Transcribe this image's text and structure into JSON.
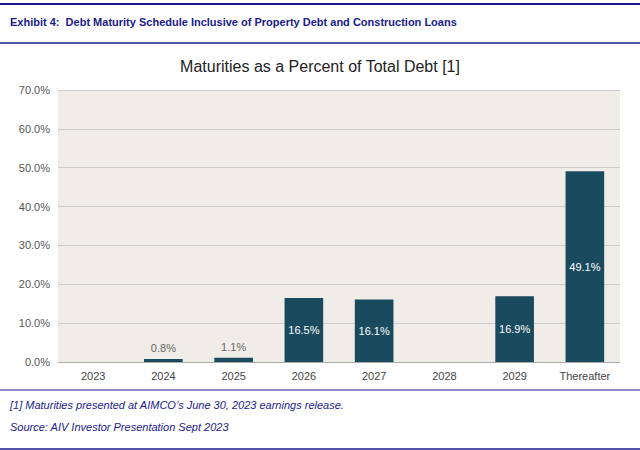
{
  "chart_data": {
    "type": "bar",
    "title": "Maturities as a Percent of Total Debt [1]",
    "annotations": [
      "Exhibit 4:  Debt Maturity Schedule Inclusive of Property Debt and Construction Loans",
      "[1] Maturities presented at AIMCO’s June 30, 2023 earnings release.",
      "Source: AIV Investor Presentation Sept 2023"
    ],
    "categories": [
      "2023",
      "2024",
      "2025",
      "2026",
      "2027",
      "2028",
      "2029",
      "Thereafter"
    ],
    "values": [
      0.0,
      0.8,
      1.1,
      16.5,
      16.1,
      0.0,
      16.9,
      49.1
    ],
    "value_labels": [
      null,
      "0.8%",
      "1.1%",
      "16.5%",
      "16.1%",
      null,
      "16.9%",
      "49.1%"
    ],
    "data_labels": true,
    "color": "#1a4a5e",
    "ylim": [
      0,
      70
    ],
    "yticks": [
      {
        "value": 0,
        "label": "0.0%"
      },
      {
        "value": 10,
        "label": "10.0%"
      },
      {
        "value": 20,
        "label": "20.0%"
      },
      {
        "value": 30,
        "label": "30.0%"
      },
      {
        "value": 40,
        "label": "40.0%"
      },
      {
        "value": 50,
        "label": "50.0%"
      },
      {
        "value": 60,
        "label": "60.0%"
      },
      {
        "value": 70,
        "label": "70.0%"
      }
    ],
    "grid": true
  }
}
